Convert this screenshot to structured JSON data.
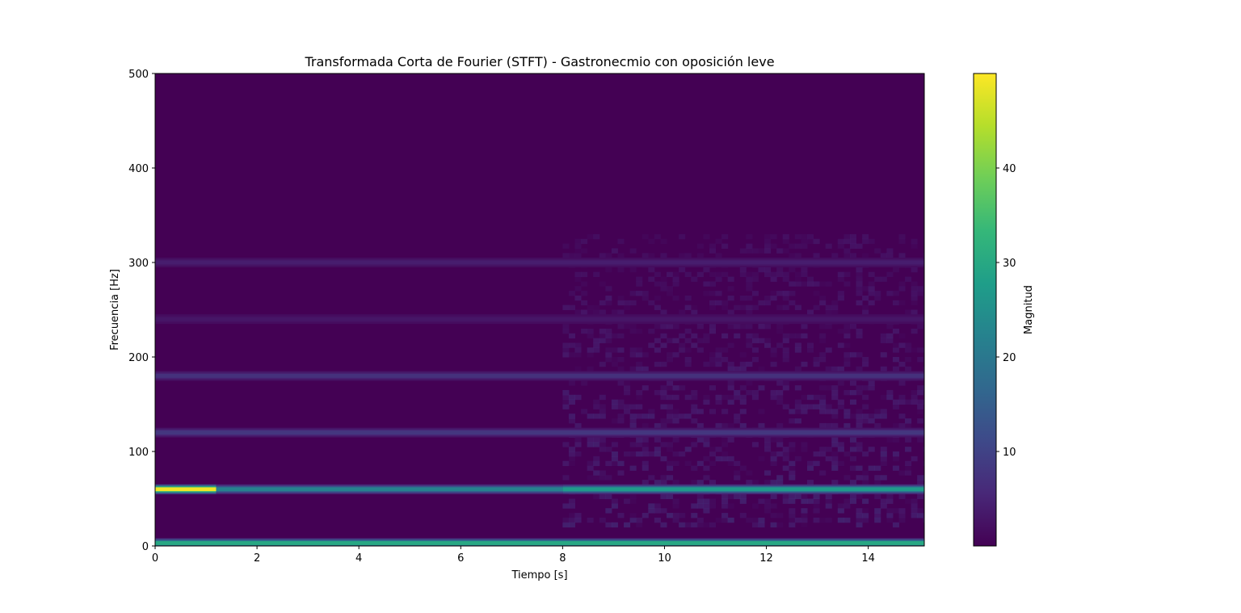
{
  "chart_data": {
    "type": "heatmap",
    "title": "Transformada Corta de Fourier (STFT) - Gastronecmio con oposición leve",
    "xlabel": "Tiempo [s]",
    "ylabel": "Frecuencia [Hz]",
    "xlim": [
      0,
      15.1
    ],
    "ylim": [
      0,
      500
    ],
    "x_ticks": [
      0,
      2,
      4,
      6,
      8,
      10,
      12,
      14
    ],
    "x_tick_labels": [
      "0",
      "2",
      "4",
      "6",
      "8",
      "10",
      "12",
      "14"
    ],
    "y_ticks": [
      0,
      100,
      200,
      300,
      400,
      500
    ],
    "y_tick_labels": [
      "0",
      "100",
      "200",
      "300",
      "400",
      "500"
    ],
    "colorbar": {
      "label": "Magnitud",
      "colormap": "viridis",
      "range": [
        0,
        50
      ],
      "ticks": [
        10,
        20,
        30,
        40
      ],
      "tick_labels": [
        "10",
        "20",
        "30",
        "40"
      ]
    },
    "background_magnitude": 1,
    "bands": [
      {
        "freq": 3,
        "t_start": 0,
        "t_end": 15.1,
        "magnitude": 30
      },
      {
        "freq": 60,
        "t_start": 0,
        "t_end": 1.2,
        "magnitude": 49
      },
      {
        "freq": 60,
        "t_start": 1.2,
        "t_end": 8,
        "magnitude": 22
      },
      {
        "freq": 60,
        "t_start": 8,
        "t_end": 15.1,
        "magnitude": 27
      },
      {
        "freq": 120,
        "t_start": 0,
        "t_end": 15.1,
        "magnitude": 8
      },
      {
        "freq": 180,
        "t_start": 0,
        "t_end": 15.1,
        "magnitude": 7
      },
      {
        "freq": 240,
        "t_start": 0,
        "t_end": 15.1,
        "magnitude": 3
      },
      {
        "freq": 300,
        "t_start": 0,
        "t_end": 15.1,
        "magnitude": 4
      }
    ],
    "noise_region": {
      "t_start": 8,
      "t_end": 15.1,
      "f_min": 20,
      "f_max": 330,
      "magnitude_max": 8
    }
  },
  "colors": {
    "viridis": [
      "#440154",
      "#482878",
      "#3e4989",
      "#31688e",
      "#26828e",
      "#1f9e89",
      "#35b779",
      "#6ece58",
      "#b5de2b",
      "#fde725"
    ]
  }
}
